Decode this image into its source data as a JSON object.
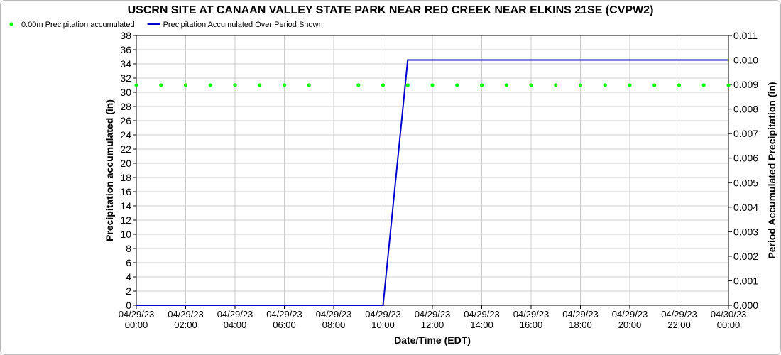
{
  "chart_data": {
    "type": "line",
    "title": "USCRN SITE AT CANAAN VALLEY STATE PARK NEAR RED CREEK NEAR ELKINS 21SE (CVPW2)",
    "xlabel": "Date/Time (EDT)",
    "ylabel": "Precipitation accumulated (in)",
    "y2label": "Period Accumulated Precipitation (in)",
    "x": [
      "04/29/23 00:00",
      "04/29/23 01:00",
      "04/29/23 02:00",
      "04/29/23 03:00",
      "04/29/23 04:00",
      "04/29/23 05:00",
      "04/29/23 06:00",
      "04/29/23 07:00",
      "04/29/23 08:00",
      "04/29/23 09:00",
      "04/29/23 10:00",
      "04/29/23 11:00",
      "04/29/23 12:00",
      "04/29/23 13:00",
      "04/29/23 14:00",
      "04/29/23 15:00",
      "04/29/23 16:00",
      "04/29/23 17:00",
      "04/29/23 18:00",
      "04/29/23 19:00",
      "04/29/23 20:00",
      "04/29/23 21:00",
      "04/29/23 22:00",
      "04/29/23 23:00",
      "04/30/23 00:00"
    ],
    "series": [
      {
        "name": "0.00m Precipitation accumulated",
        "color": "#00ff00",
        "style": "dots",
        "values": [
          31,
          31,
          31,
          31,
          31,
          31,
          31,
          31,
          null,
          31,
          31,
          31,
          31,
          31,
          31,
          31,
          31,
          31,
          31,
          31,
          31,
          31,
          31,
          31,
          31
        ]
      },
      {
        "name": "Precipitation Accumulated Over Period Shown",
        "color": "#0000cc",
        "style": "line",
        "axis": "y2",
        "values": [
          0,
          0,
          0,
          0,
          0,
          0,
          0,
          0,
          0,
          0,
          0,
          0.01,
          0.01,
          0.01,
          0.01,
          0.01,
          0.01,
          0.01,
          0.01,
          0.01,
          0.01,
          0.01,
          0.01,
          0.01,
          0.01
        ]
      }
    ],
    "xlim": [
      "04/29/23 00:00",
      "04/30/23 00:00"
    ],
    "xticks": [
      "04/29/23 00:00",
      "04/29/23 02:00",
      "04/29/23 04:00",
      "04/29/23 06:00",
      "04/29/23 08:00",
      "04/29/23 10:00",
      "04/29/23 12:00",
      "04/29/23 14:00",
      "04/29/23 16:00",
      "04/29/23 18:00",
      "04/29/23 20:00",
      "04/29/23 22:00",
      "04/30/23 00:00"
    ],
    "ylim": [
      0,
      38
    ],
    "yticks": [
      0,
      2,
      4,
      6,
      8,
      10,
      12,
      14,
      16,
      18,
      20,
      22,
      24,
      26,
      28,
      30,
      32,
      34,
      36,
      38
    ],
    "y2lim": [
      0,
      0.011
    ],
    "y2ticks": [
      {
        "value": 0,
        "label": "0.000"
      },
      {
        "value": 0.001,
        "label": "0.001"
      },
      {
        "value": 0.002,
        "label": "0.002"
      },
      {
        "value": 0.003,
        "label": "0.003"
      },
      {
        "value": 0.004,
        "label": "0.004"
      },
      {
        "value": 0.005,
        "label": "0.005"
      },
      {
        "value": 0.006,
        "label": "0.006"
      },
      {
        "value": 0.007,
        "label": "0.007"
      },
      {
        "value": 0.008,
        "label": "0.008"
      },
      {
        "value": 0.009,
        "label": "0.009"
      },
      {
        "value": 0.01,
        "label": "0.010"
      },
      {
        "value": 0.011,
        "label": "0.011"
      }
    ],
    "grid": true
  }
}
